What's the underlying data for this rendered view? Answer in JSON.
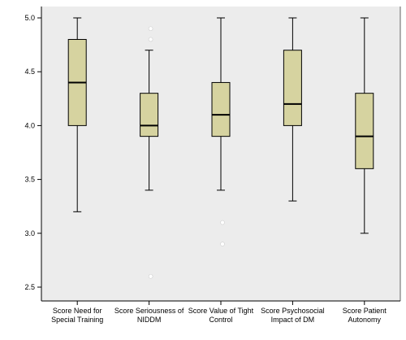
{
  "chart_data": {
    "type": "box",
    "ylim": [
      2.4,
      5.1
    ],
    "yticks": [
      "2.5",
      "3.0",
      "3.5",
      "4.0",
      "4.5",
      "5.0"
    ],
    "grid": false,
    "colors": {
      "plot_bg": "#ececec",
      "box_fill": "#d6d3a0",
      "line": "#000000",
      "frame": "#000000"
    },
    "categories": [
      {
        "line1": "Score Need for",
        "line2": "Special Training"
      },
      {
        "line1": "Score Seriousness of",
        "line2": "NIDDM"
      },
      {
        "line1": "Score Value of Tight",
        "line2": "Control"
      },
      {
        "line1": "Score Psychosocial",
        "line2": "Impact of DM"
      },
      {
        "line1": "Score Patient",
        "line2": "Autonomy"
      }
    ],
    "boxes": [
      {
        "min": 3.2,
        "q1": 4.0,
        "median": 4.4,
        "q3": 4.8,
        "max": 5.0,
        "outliers": []
      },
      {
        "min": 3.4,
        "q1": 3.9,
        "median": 4.0,
        "q3": 4.3,
        "max": 4.7,
        "outliers": [
          4.9,
          4.8,
          2.6
        ]
      },
      {
        "min": 3.4,
        "q1": 3.9,
        "median": 4.1,
        "q3": 4.4,
        "max": 5.0,
        "outliers": [
          3.1,
          2.9
        ]
      },
      {
        "min": 3.3,
        "q1": 4.0,
        "median": 4.2,
        "q3": 4.7,
        "max": 5.0,
        "outliers": []
      },
      {
        "min": 3.0,
        "q1": 3.6,
        "median": 3.9,
        "q3": 4.3,
        "max": 5.0,
        "outliers": []
      }
    ]
  }
}
